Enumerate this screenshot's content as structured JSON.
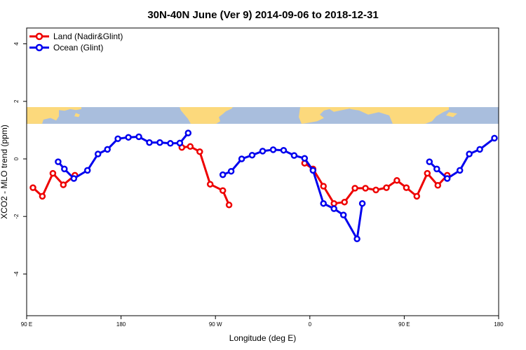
{
  "chart_data": {
    "type": "line",
    "title": "30N-40N June (Ver 9)   2014-09-06 to 2018-12-31",
    "xlabel": "Longitude (deg E)",
    "ylabel": "XCO2 - MLO trend (ppm)",
    "xlim": [
      90,
      540
    ],
    "ylim": [
      -5.45,
      4.55
    ],
    "x_ticks": [
      {
        "value": 90,
        "label": "90 E"
      },
      {
        "value": 180,
        "label": "180"
      },
      {
        "value": 270,
        "label": "90 W"
      },
      {
        "value": 360,
        "label": "0"
      },
      {
        "value": 450,
        "label": "90 E"
      },
      {
        "value": 540,
        "label": "180"
      }
    ],
    "y_ticks": [
      {
        "value": -4,
        "label": "-4"
      },
      {
        "value": -2,
        "label": "-2"
      },
      {
        "value": 0,
        "label": "0"
      },
      {
        "value": 2,
        "label": "2"
      },
      {
        "value": 4,
        "label": "4"
      }
    ],
    "grid": false,
    "legend_position": "top-left",
    "map_strip": {
      "ymin": 1.22,
      "ymax": 1.8,
      "ocean_color": "#a9bedd",
      "land_color": "#fcd97c"
    },
    "series": [
      {
        "name": "Land (Nadir&Glint)",
        "color": "#ee0000",
        "segments": [
          [
            [
              96,
              -1.0
            ],
            [
              105,
              -1.3
            ],
            [
              115,
              -0.5
            ],
            [
              125,
              -0.9
            ],
            [
              136,
              -0.57
            ]
          ],
          [
            [
              238,
              0.4
            ],
            [
              246,
              0.43
            ],
            [
              255,
              0.25
            ],
            [
              265,
              -0.88
            ],
            [
              277,
              -1.1
            ],
            [
              283,
              -1.6
            ]
          ],
          [
            [
              355,
              -0.15
            ],
            [
              363,
              -0.35
            ],
            [
              373,
              -0.95
            ],
            [
              383,
              -1.55
            ],
            [
              393,
              -1.5
            ],
            [
              403,
              -1.02
            ],
            [
              413,
              -1.02
            ],
            [
              423,
              -1.08
            ],
            [
              433,
              -1.0
            ],
            [
              443,
              -0.75
            ],
            [
              452,
              -1.0
            ],
            [
              462,
              -1.3
            ],
            [
              472,
              -0.5
            ],
            [
              482,
              -0.92
            ],
            [
              491,
              -0.57
            ]
          ]
        ]
      },
      {
        "name": "Ocean (Glint)",
        "color": "#0000ee",
        "segments": [
          [
            [
              120,
              -0.1
            ],
            [
              126,
              -0.35
            ],
            [
              135,
              -0.68
            ],
            [
              148,
              -0.4
            ],
            [
              158,
              0.17
            ],
            [
              167,
              0.33
            ],
            [
              177,
              0.7
            ],
            [
              187,
              0.75
            ],
            [
              197,
              0.77
            ],
            [
              207,
              0.57
            ],
            [
              217,
              0.57
            ],
            [
              227,
              0.54
            ],
            [
              236,
              0.55
            ],
            [
              244,
              0.9
            ]
          ],
          [
            [
              277,
              -0.55
            ],
            [
              285,
              -0.43
            ],
            [
              295,
              0.0
            ],
            [
              305,
              0.13
            ],
            [
              315,
              0.27
            ],
            [
              325,
              0.32
            ],
            [
              335,
              0.3
            ],
            [
              345,
              0.12
            ],
            [
              355,
              0.02
            ],
            [
              363,
              -0.4
            ],
            [
              373,
              -1.55
            ],
            [
              383,
              -1.73
            ],
            [
              392,
              -1.95
            ],
            [
              405,
              -2.78
            ],
            [
              410,
              -1.55
            ]
          ],
          [
            [
              474,
              -0.1
            ],
            [
              481,
              -0.35
            ],
            [
              491,
              -0.68
            ],
            [
              503,
              -0.4
            ],
            [
              512,
              0.17
            ],
            [
              522,
              0.33
            ],
            [
              536,
              0.72
            ]
          ]
        ]
      }
    ]
  }
}
